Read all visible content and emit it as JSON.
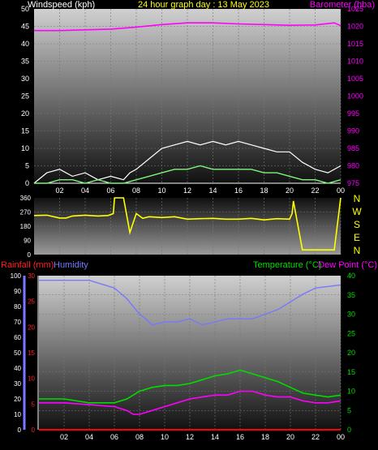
{
  "header": {
    "windspeed_label": "Windspeed (kph)",
    "title": "24 hour graph day : 13 May 2023",
    "barometer_label": "Barometer (hba)"
  },
  "labels": {
    "rainfall": "Rainfall (mm)",
    "humidity": "Humidity",
    "temperature": "Temperature (°C)",
    "dewpoint": "Dew Point (°C)"
  },
  "colors": {
    "wind_gust": "#ffffff",
    "wind_avg": "#7cf57c",
    "barometer": "#ff00ff",
    "direction": "#ffff00",
    "temperature": "#00dd00",
    "dewpoint": "#ff00ff",
    "humidity": "#7777ff",
    "rainfall": "#ff0000",
    "title": "#ffff00",
    "wind_label": "#ffffff",
    "rain_axis": "#ff2020",
    "hum_axis": "#7777ff",
    "temp_axis": "#00dd00"
  },
  "chart_data": [
    {
      "type": "line",
      "name": "wind-barometer",
      "x_ticks": [
        "02",
        "04",
        "06",
        "08",
        "10",
        "12",
        "14",
        "16",
        "18",
        "20",
        "22",
        "00"
      ],
      "left_axis": {
        "label": "Windspeed (kph)",
        "ticks": [
          0,
          5,
          10,
          15,
          20,
          25,
          30,
          35,
          40,
          45,
          50
        ],
        "ylim": [
          0,
          50
        ]
      },
      "right_axis": {
        "label": "Barometer (hba)",
        "ticks": [
          975,
          980,
          985,
          990,
          995,
          1000,
          1005,
          1010,
          1015,
          1020,
          1025
        ],
        "ylim": [
          975,
          1025
        ]
      },
      "series": [
        {
          "key": "barometer",
          "axis": "right",
          "x": [
            0,
            2,
            4,
            6,
            8,
            10,
            12,
            14,
            16,
            18,
            20,
            22,
            23.5,
            24
          ],
          "values": [
            1018.8,
            1018.8,
            1019.0,
            1019.2,
            1019.8,
            1020.5,
            1021.0,
            1021.0,
            1020.7,
            1020.5,
            1020.3,
            1020.4,
            1021.0,
            1020.2
          ]
        },
        {
          "key": "wind_gust",
          "axis": "left",
          "x": [
            0,
            1,
            2,
            3,
            4,
            5,
            6,
            7,
            7.5,
            8,
            9,
            10,
            11,
            12,
            13,
            14,
            15,
            16,
            17,
            18,
            19,
            20,
            21,
            22,
            23,
            24
          ],
          "values": [
            0,
            3,
            4,
            2,
            3,
            1,
            2,
            1,
            3,
            4,
            7,
            10,
            11,
            12,
            11,
            12,
            11,
            12,
            11,
            10,
            9,
            9,
            6,
            4,
            3,
            5
          ]
        },
        {
          "key": "wind_avg",
          "axis": "left",
          "x": [
            0,
            1,
            2,
            3,
            4,
            5,
            6,
            7,
            8,
            9,
            10,
            11,
            12,
            13,
            14,
            15,
            16,
            17,
            18,
            19,
            20,
            21,
            22,
            23,
            24
          ],
          "values": [
            0,
            0,
            1,
            1,
            0,
            1,
            0,
            0,
            1,
            2,
            3,
            4,
            4,
            5,
            4,
            4,
            4,
            4,
            3,
            3,
            2,
            1,
            1,
            0,
            1
          ]
        }
      ]
    },
    {
      "type": "line",
      "name": "wind-direction",
      "left_ticks": [
        0,
        90,
        180,
        270,
        360
      ],
      "compass": [
        "N",
        "W",
        "S",
        "E",
        "N"
      ],
      "ylim": [
        0,
        360
      ],
      "series": [
        {
          "key": "direction",
          "x": [
            0,
            1,
            2,
            2.5,
            3,
            4,
            5,
            5.8,
            6.2,
            6.3,
            7,
            7.5,
            8,
            8.5,
            9,
            10,
            11,
            12,
            13,
            14,
            15,
            16,
            17,
            18,
            19,
            20,
            20.2,
            20.3,
            21,
            22,
            23.5,
            24
          ],
          "values": [
            248,
            250,
            232,
            232,
            245,
            250,
            245,
            248,
            260,
            360,
            360,
            140,
            260,
            230,
            240,
            235,
            240,
            225,
            228,
            230,
            225,
            225,
            230,
            220,
            228,
            225,
            260,
            340,
            30,
            30,
            30,
            360
          ]
        }
      ]
    },
    {
      "type": "line",
      "name": "temp-humidity-rain",
      "x_ticks": [
        "02",
        "04",
        "06",
        "08",
        "10",
        "12",
        "14",
        "16",
        "18",
        "20",
        "22",
        "00"
      ],
      "left_axis_humidity": {
        "label": "Humidity",
        "ticks": [
          0,
          10,
          20,
          30,
          40,
          50,
          60,
          70,
          80,
          90,
          100
        ],
        "ylim": [
          0,
          100
        ]
      },
      "left_axis_rainfall": {
        "label": "Rainfall (mm)",
        "ticks": [
          0,
          5,
          10,
          15,
          20,
          25,
          30
        ],
        "ylim": [
          0,
          30
        ]
      },
      "right_axis": {
        "label": "Temperature (°C)",
        "ticks": [
          0,
          5,
          10,
          15,
          20,
          25,
          30,
          35,
          40
        ],
        "ylim": [
          0,
          40
        ]
      },
      "series": [
        {
          "key": "humidity",
          "axis": "hum",
          "x": [
            0,
            2,
            4,
            6,
            7,
            8,
            8.5,
            9,
            10,
            11,
            12,
            13,
            14,
            15,
            16,
            17,
            18,
            19,
            20,
            21,
            22,
            23,
            24
          ],
          "values": [
            97,
            97,
            97,
            92,
            85,
            75,
            72,
            68,
            70,
            70,
            72,
            68,
            70,
            72,
            72,
            72,
            75,
            78,
            83,
            88,
            92,
            93,
            94
          ]
        },
        {
          "key": "temperature",
          "axis": "right",
          "x": [
            0,
            2,
            4,
            6,
            7,
            8,
            9,
            10,
            11,
            12,
            13,
            14,
            15,
            16,
            17,
            18,
            19,
            20,
            21,
            22,
            23,
            24
          ],
          "values": [
            8,
            8,
            7,
            7,
            8,
            10,
            11,
            11.5,
            11.5,
            12,
            13,
            14,
            14.5,
            15.5,
            14.5,
            13.5,
            12.5,
            11,
            9.5,
            9,
            8.5,
            9
          ]
        },
        {
          "key": "dewpoint",
          "axis": "right",
          "x": [
            0,
            2,
            4,
            6,
            7,
            7.5,
            8,
            9,
            10,
            11,
            12,
            13,
            14,
            15,
            16,
            17,
            18,
            19,
            20,
            21,
            22,
            23,
            24
          ],
          "values": [
            7,
            7,
            6.5,
            6,
            5,
            4,
            4,
            5,
            6,
            7,
            8,
            8.5,
            9,
            9,
            10,
            10,
            9,
            8.5,
            8.5,
            7.5,
            7,
            7,
            7.5
          ]
        },
        {
          "key": "rainfall",
          "axis": "rain",
          "x": [
            0,
            24
          ],
          "values": [
            0,
            0
          ]
        }
      ]
    }
  ]
}
